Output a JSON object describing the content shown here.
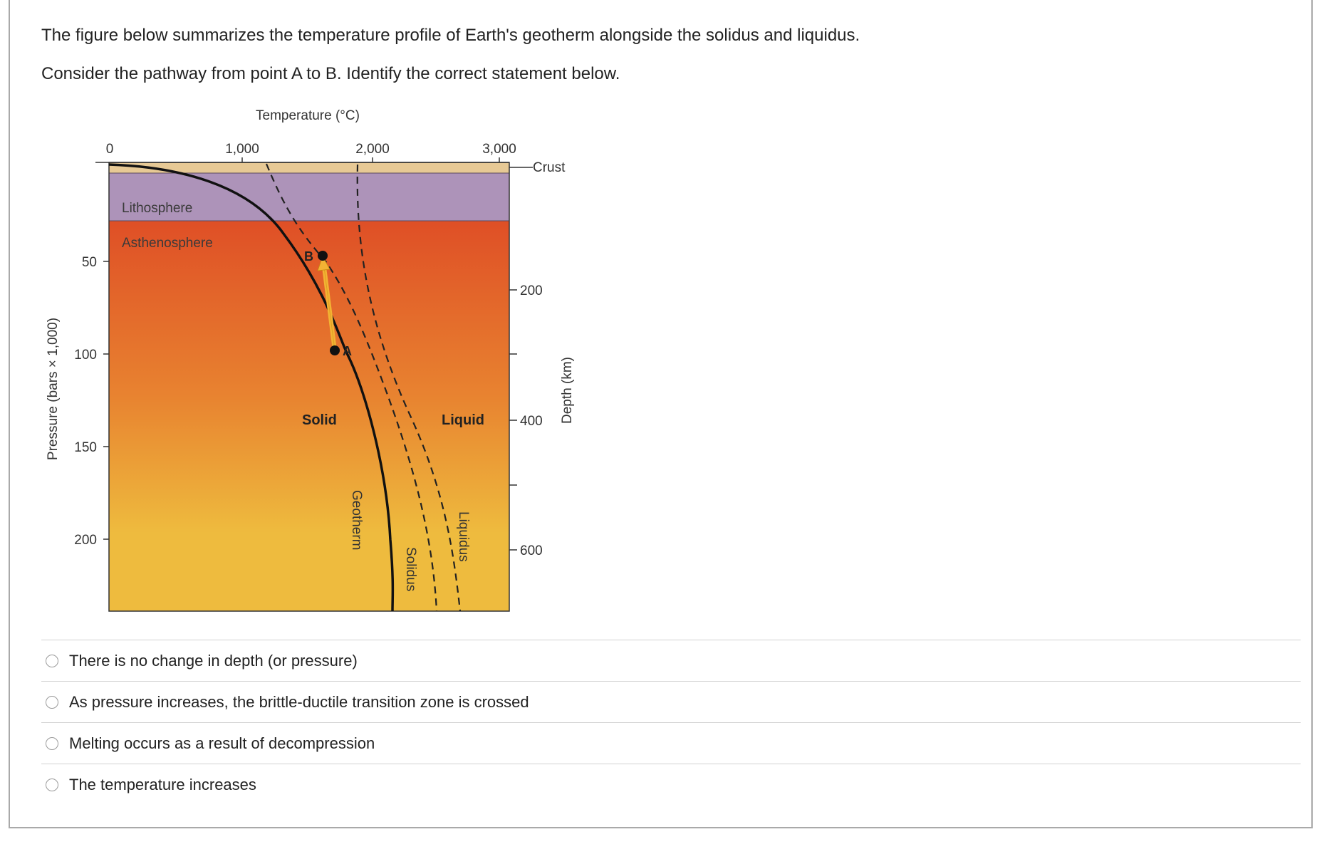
{
  "question": {
    "line1": "The figure below summarizes the temperature profile of Earth's geotherm alongside the solidus and liquidus.",
    "line2": "Consider the pathway from point A to B. Identify the correct statement below."
  },
  "figure": {
    "top_axis_title": "Temperature (°C)",
    "top_ticks": [
      "0",
      "1,000",
      "2,000",
      "3,000"
    ],
    "left_axis_title": "Pressure (bars × 1,000)",
    "left_ticks": [
      "50",
      "100",
      "150",
      "200"
    ],
    "right_axis_title": "Depth (km)",
    "right_ticks": [
      "200",
      "400",
      "600"
    ],
    "crust_label": "Crust",
    "lithosphere_label": "Lithosphere",
    "asthenosphere_label": "Asthenosphere",
    "point_a": "A",
    "point_b": "B",
    "solid_label": "Solid",
    "liquid_label": "Liquid",
    "geotherm_label": "Geotherm",
    "solidus_label": "Solidus",
    "liquidus_label": "Liquidus",
    "colors": {
      "crust": "#e7c995",
      "lithosphere": "#ad93b9",
      "asthenosphere_top": "#df4f26",
      "asthenosphere_bottom": "#eebb3e",
      "arrow": "#f3b234"
    }
  },
  "options": [
    {
      "label": "There is no change in depth (or pressure)"
    },
    {
      "label": "As pressure increases, the brittle-ductile transition zone is crossed"
    },
    {
      "label": "Melting occurs as a result of decompression"
    },
    {
      "label": "The temperature increases"
    }
  ]
}
